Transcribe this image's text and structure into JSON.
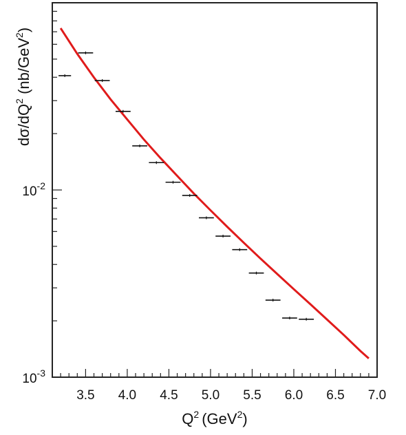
{
  "chart_data": {
    "type": "scatter",
    "title": "",
    "xlabel": "Q",
    "xlabel_sup": "2",
    "xlabel_unit": "(GeV",
    "xlabel_unit_sup": "2",
    "xlabel_close": ")",
    "ylabel_parts": [
      "dσ/dQ",
      "2",
      " (nb/GeV",
      "2",
      ")"
    ],
    "xlim": [
      3.1,
      7.0
    ],
    "ylim": [
      0.001,
      0.1
    ],
    "yscale": "log",
    "x_ticks": [
      {
        "value": 3.5,
        "label": "3.5"
      },
      {
        "value": 4.0,
        "label": "4.0"
      },
      {
        "value": 4.5,
        "label": "4.5"
      },
      {
        "value": 5.0,
        "label": "5.0"
      },
      {
        "value": 5.5,
        "label": "5.5"
      },
      {
        "value": 6.0,
        "label": "6.0"
      },
      {
        "value": 6.5,
        "label": "6.5"
      },
      {
        "value": 7.0,
        "label": "7.0"
      }
    ],
    "y_ticks": [
      {
        "value": 0.01,
        "base": "10",
        "exp": "-2"
      },
      {
        "value": 0.001,
        "base": "10",
        "exp": "-3"
      }
    ],
    "series": [
      {
        "kind": "data-points",
        "color": "#111111",
        "points": [
          {
            "x": 3.25,
            "y": 0.0408,
            "xerr": 0.075
          },
          {
            "x": 3.5,
            "y": 0.054,
            "xerr": 0.09
          },
          {
            "x": 3.7,
            "y": 0.0384,
            "xerr": 0.09
          },
          {
            "x": 3.95,
            "y": 0.0263,
            "xerr": 0.09
          },
          {
            "x": 4.15,
            "y": 0.0172,
            "xerr": 0.09
          },
          {
            "x": 4.35,
            "y": 0.014,
            "xerr": 0.09
          },
          {
            "x": 4.55,
            "y": 0.011,
            "xerr": 0.09
          },
          {
            "x": 4.75,
            "y": 0.00935,
            "xerr": 0.09
          },
          {
            "x": 4.95,
            "y": 0.0071,
            "xerr": 0.09
          },
          {
            "x": 5.15,
            "y": 0.00567,
            "xerr": 0.09
          },
          {
            "x": 5.35,
            "y": 0.0048,
            "xerr": 0.09
          },
          {
            "x": 5.55,
            "y": 0.0036,
            "xerr": 0.09
          },
          {
            "x": 5.75,
            "y": 0.00258,
            "xerr": 0.09
          },
          {
            "x": 5.95,
            "y": 0.00207,
            "xerr": 0.09
          },
          {
            "x": 6.15,
            "y": 0.00204,
            "xerr": 0.09
          }
        ]
      },
      {
        "kind": "fit-curve",
        "color": "#e01b1b",
        "x": [
          3.2,
          3.4,
          3.6,
          3.8,
          4.0,
          4.2,
          4.4,
          4.6,
          4.8,
          5.0,
          5.2,
          5.4,
          5.6,
          5.8,
          6.0,
          6.2,
          6.4,
          6.6,
          6.8,
          6.9
        ],
        "y": [
          0.0732,
          0.0533,
          0.0399,
          0.0305,
          0.0238,
          0.0186,
          0.0148,
          0.0119,
          0.00957,
          0.00779,
          0.00636,
          0.00522,
          0.0043,
          0.00356,
          0.00295,
          0.00245,
          0.00203,
          0.00168,
          0.00138,
          0.00126
        ]
      }
    ]
  }
}
